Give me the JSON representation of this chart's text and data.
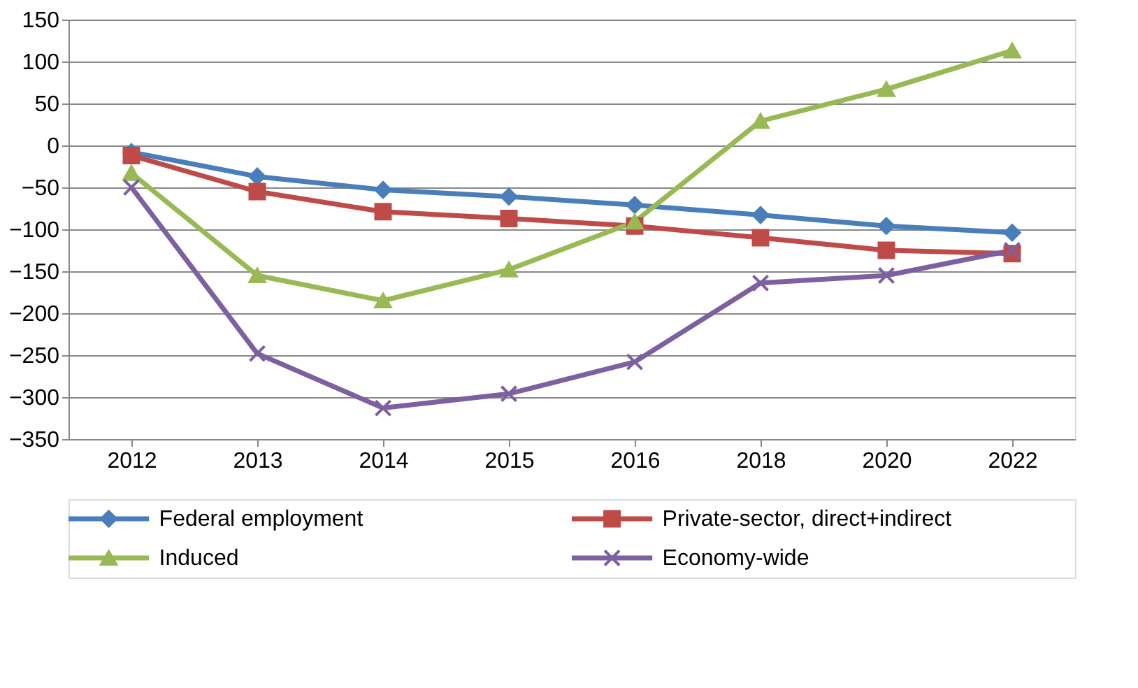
{
  "chart_data": {
    "type": "line",
    "categories": [
      "2012",
      "2013",
      "2014",
      "2015",
      "2016",
      "2018",
      "2020",
      "2022"
    ],
    "series": [
      {
        "name": "Federal employment",
        "color": "#4a7ebb",
        "marker": "diamond",
        "values": [
          -8,
          -37,
          -53,
          -61,
          -71,
          -83,
          -96,
          -104
        ]
      },
      {
        "name": "Private-sector, direct+indirect",
        "color": "#be4b48",
        "marker": "square",
        "values": [
          -12,
          -55,
          -79,
          -87,
          -96,
          -110,
          -125,
          -129
        ]
      },
      {
        "name": "Induced",
        "color": "#98b954",
        "marker": "triangle",
        "values": [
          -33,
          -155,
          -185,
          -148,
          -91,
          29,
          67,
          113
        ]
      },
      {
        "name": "Economy-wide",
        "color": "#7d60a0",
        "marker": "cross",
        "values": [
          -50,
          -248,
          -313,
          -296,
          -258,
          -164,
          -155,
          -125
        ]
      }
    ],
    "ylim": [
      -350,
      150
    ],
    "yticks": [
      -350,
      -300,
      -250,
      -200,
      -150,
      -100,
      -50,
      0,
      50,
      100,
      150
    ],
    "grid": "y",
    "legend": "bottom",
    "line_style": "solid"
  }
}
